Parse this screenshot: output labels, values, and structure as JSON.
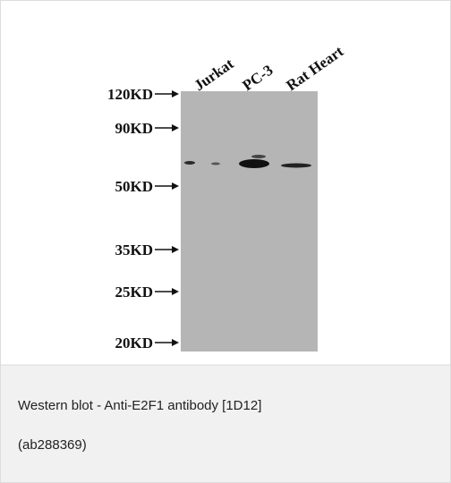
{
  "lanes": [
    "Jurkat",
    "PC-3",
    "Rat Heart"
  ],
  "markers": [
    "120KD",
    "90KD",
    "50KD",
    "35KD",
    "25KD",
    "20KD"
  ],
  "caption": {
    "title": "Western blot - Anti-E2F1 antibody [1D12]",
    "id": "(ab288369)"
  }
}
